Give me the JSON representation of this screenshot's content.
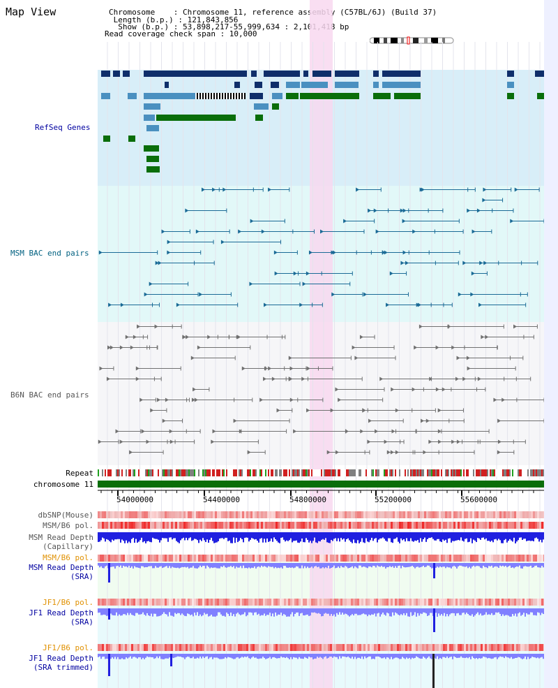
{
  "title": "Map View",
  "header": {
    "chromosome": "Chromosome    : Chromosome 11, reference assembly (C57BL/6J) (Build 37)",
    "length": " Length (b.p.) : 121,843,856",
    "show": "  Show (b.p.) : 53,898,217-55,999,634 : 2,101,418 bp",
    "coverage": "Read coverage check span : 10,000"
  },
  "tracks": {
    "refseq": "RefSeq Genes",
    "msm_bac": "MSM BAC end pairs",
    "b6n_bac": "B6N BAC end pairs",
    "repeat": "Repeat",
    "chromosome": "chromosome 11",
    "dbsnp": "dbSNP(Mouse)",
    "msm_b6_pol": "MSM/B6 pol.",
    "msm_depth_cap1": "MSM Read Depth",
    "msm_depth_cap2": "(Capillary)",
    "msm_b6_pol2": "MSM/B6 pol.",
    "msm_depth_sra1": "MSM Read Depth",
    "msm_depth_sra2": "(SRA)",
    "jf1_b6_pol": "JF1/B6 pol.",
    "jf1_depth_sra1": "JF1 Read Depth",
    "jf1_depth_sra2": "(SRA)",
    "jf1_b6_pol2": "JF1/B6 pol.",
    "jf1_depth_trim1": "JF1 Read Depth",
    "jf1_depth_trim2": "(SRA trimmed)"
  },
  "axis_ticks": [
    "54000000",
    "54400000",
    "54800000",
    "55200000",
    "55600000"
  ],
  "colors": {
    "refseq_bg": "#d8eef8",
    "msm_bg": "#e2f8f8",
    "b6n_bg": "#f6f6f8",
    "highlight": "#f8d8f0",
    "gene_dark": "#0f2e6a",
    "gene_mid": "#4a90c0",
    "gene_green": "#0a6e0a",
    "msm_line": "#1a6a96",
    "b6n_line": "#707070",
    "chrom_green": "#0a6e0a",
    "depth_blue": "#2020e0",
    "depth_light": "#8080ff",
    "pol_red": "#e04040",
    "label_blue": "#0000a0",
    "label_teal": "#006080",
    "label_orange": "#e09000"
  }
}
